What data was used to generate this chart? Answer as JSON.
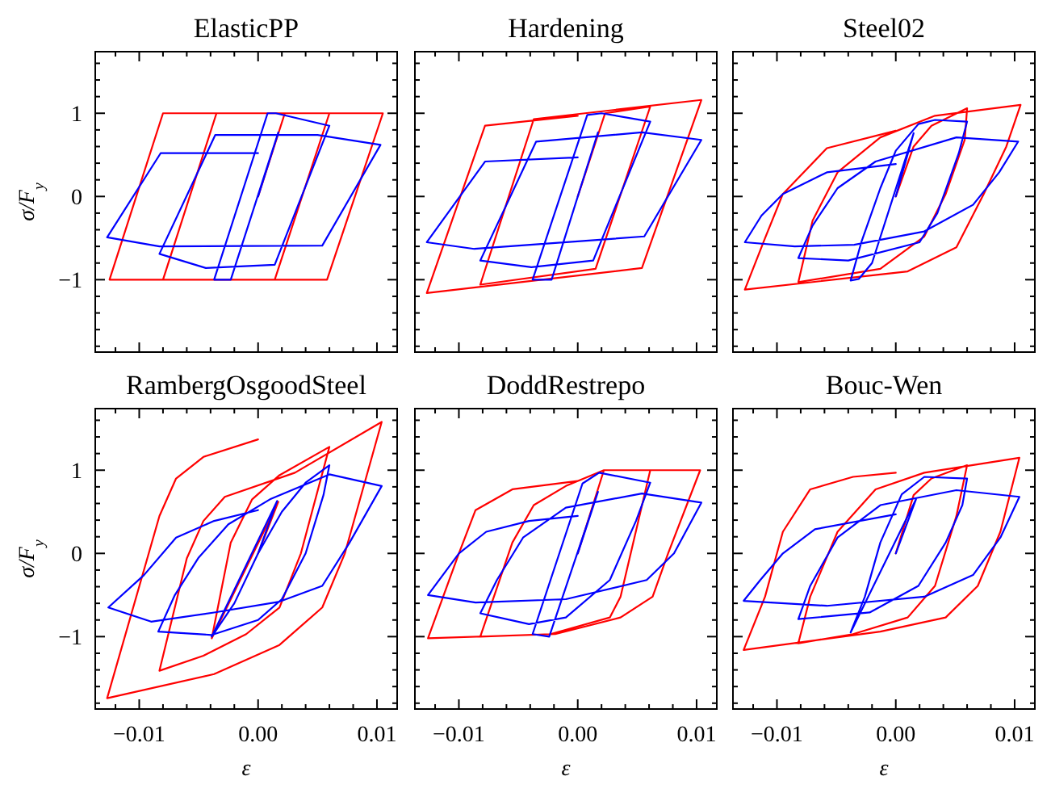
{
  "chart_data": [
    {
      "type": "line",
      "title": "ElasticPP",
      "ylabel": "σ/F$_{y}$",
      "tick_labels": "y",
      "xlim": [
        -0.0137,
        0.0117
      ],
      "ylim": [
        -1.87,
        1.74
      ],
      "xticks": [
        {
          "value": -0.012,
          "label": null
        },
        -0.01,
        {
          "value": -0.008,
          "label": null
        },
        {
          "value": -0.006,
          "label": null
        },
        {
          "value": -0.004,
          "label": null
        },
        {
          "value": -0.002,
          "label": null
        },
        0,
        {
          "value": 0.002,
          "label": null
        },
        {
          "value": 0.004,
          "label": null
        },
        {
          "value": 0.006,
          "label": null
        },
        {
          "value": 0.008,
          "label": null
        },
        0.01
      ],
      "yticks": [
        {
          "value": -1.8,
          "label": null
        },
        {
          "value": -1.6,
          "label": null
        },
        {
          "value": -1.4,
          "label": null
        },
        {
          "value": -1.2,
          "label": null
        },
        {
          "value": -1,
          "label": "−1"
        },
        {
          "value": -0.8,
          "label": null
        },
        {
          "value": -0.6,
          "label": null
        },
        {
          "value": -0.4,
          "label": null
        },
        {
          "value": -0.2,
          "label": null
        },
        {
          "value": 0,
          "label": "0"
        },
        {
          "value": 0.2,
          "label": null
        },
        {
          "value": 0.4,
          "label": null
        },
        {
          "value": 0.6,
          "label": null
        },
        {
          "value": 0.8,
          "label": null
        },
        {
          "value": 1,
          "label": "1"
        },
        {
          "value": 1.2,
          "label": null
        },
        {
          "value": 1.4,
          "label": null
        },
        {
          "value": 1.6,
          "label": null
        }
      ],
      "series": [
        {
          "color": "#ff0000",
          "x": [
            0,
            0.00225,
            0.006,
            0.0014,
            -0.008,
            -0.0035,
            0.0105,
            0.0058,
            -0.0125,
            -0.008,
            0
          ],
          "values": [
            0,
            1,
            1,
            -1,
            -1,
            1,
            1,
            -1,
            -1,
            1,
            1
          ]
        },
        {
          "color": "#0000ff",
          "x": [
            0,
            0.0017,
            -0.0023,
            -0.0037,
            0.0008,
            0.0015,
            0.006,
            0.0014,
            -0.0044,
            -0.0083,
            -0.0036,
            0.005,
            0.0103,
            0.0054,
            -0.0083,
            -0.0127,
            -0.0082,
            0
          ],
          "values": [
            0,
            0.77,
            -1,
            -1,
            1,
            1,
            0.85,
            -0.82,
            -0.86,
            -0.69,
            0.74,
            0.74,
            0.62,
            -0.59,
            -0.6,
            -0.49,
            0.52,
            0.52
          ]
        }
      ]
    },
    {
      "type": "line",
      "title": "Hardening",
      "tick_labels": false,
      "xlim": [
        -0.0137,
        0.0117
      ],
      "ylim": [
        -1.87,
        1.74
      ],
      "xticks": [
        {
          "value": -0.012,
          "label": null
        },
        -0.01,
        {
          "value": -0.008,
          "label": null
        },
        {
          "value": -0.006,
          "label": null
        },
        {
          "value": -0.004,
          "label": null
        },
        {
          "value": -0.002,
          "label": null
        },
        0,
        {
          "value": 0.002,
          "label": null
        },
        {
          "value": 0.004,
          "label": null
        },
        {
          "value": 0.006,
          "label": null
        },
        {
          "value": 0.008,
          "label": null
        },
        0.01
      ],
      "yticks": [
        {
          "value": -1.8,
          "label": null
        },
        {
          "value": -1.6,
          "label": null
        },
        {
          "value": -1.4,
          "label": null
        },
        {
          "value": -1.2,
          "label": null
        },
        -1,
        {
          "value": -0.8,
          "label": null
        },
        {
          "value": -0.6,
          "label": null
        },
        {
          "value": -0.4,
          "label": null
        },
        {
          "value": -0.2,
          "label": null
        },
        0,
        {
          "value": 0.2,
          "label": null
        },
        {
          "value": 0.4,
          "label": null
        },
        {
          "value": 0.6,
          "label": null
        },
        {
          "value": 0.8,
          "label": null
        },
        1,
        {
          "value": 1.2,
          "label": null
        },
        {
          "value": 1.4,
          "label": null
        },
        {
          "value": 1.6,
          "label": null
        }
      ],
      "series": [
        {
          "color": "#ff0000",
          "x": [
            0,
            0.0023,
            0.0061,
            0.0015,
            -0.0082,
            -0.0037,
            0.0104,
            0.0054,
            -0.0127,
            -0.0078,
            0
          ],
          "values": [
            0,
            1,
            1.08,
            -0.87,
            -1.06,
            0.93,
            1.16,
            -0.86,
            -1.16,
            0.85,
            0.97
          ]
        },
        {
          "color": "#0000ff",
          "x": [
            0,
            0.0017,
            -0.0022,
            -0.0038,
            0.0008,
            0.002,
            0.0061,
            0.0013,
            -0.0039,
            -0.0082,
            -0.0035,
            0.0054,
            0.0104,
            0.0056,
            -0.0087,
            -0.0127,
            -0.0078,
            0
          ],
          "values": [
            0,
            0.77,
            -1,
            -1,
            0.98,
            1,
            0.9,
            -0.77,
            -0.85,
            -0.77,
            0.66,
            0.77,
            0.68,
            -0.48,
            -0.63,
            -0.55,
            0.42,
            0.47
          ]
        }
      ]
    },
    {
      "type": "line",
      "title": "Steel02",
      "tick_labels": false,
      "xlim": [
        -0.0137,
        0.0117
      ],
      "ylim": [
        -1.87,
        1.74
      ],
      "xticks": [
        {
          "value": -0.012,
          "label": null
        },
        -0.01,
        {
          "value": -0.008,
          "label": null
        },
        {
          "value": -0.006,
          "label": null
        },
        {
          "value": -0.004,
          "label": null
        },
        {
          "value": -0.002,
          "label": null
        },
        0,
        {
          "value": 0.002,
          "label": null
        },
        {
          "value": 0.004,
          "label": null
        },
        {
          "value": 0.006,
          "label": null
        },
        {
          "value": 0.008,
          "label": null
        },
        0.01
      ],
      "yticks": [
        {
          "value": -1.8,
          "label": null
        },
        {
          "value": -1.6,
          "label": null
        },
        {
          "value": -1.4,
          "label": null
        },
        {
          "value": -1.2,
          "label": null
        },
        -1,
        {
          "value": -0.8,
          "label": null
        },
        {
          "value": -0.6,
          "label": null
        },
        {
          "value": -0.4,
          "label": null
        },
        {
          "value": -0.2,
          "label": null
        },
        0,
        {
          "value": 0.2,
          "label": null
        },
        {
          "value": 0.4,
          "label": null
        },
        {
          "value": 0.6,
          "label": null
        },
        {
          "value": 0.8,
          "label": null
        },
        1,
        {
          "value": 1.2,
          "label": null
        },
        {
          "value": 1.4,
          "label": null
        },
        {
          "value": 1.6,
          "label": null
        }
      ],
      "series": [
        {
          "color": "#ff0000",
          "x": [
            0,
            0.0015,
            0.003,
            0.006,
            0.0058,
            0.0042,
            0.0024,
            -0.0013,
            -0.0082,
            -0.007,
            -0.0049,
            -0.0013,
            0.0033,
            0.0105,
            0.0093,
            0.0074,
            0.0051,
            0.001,
            -0.0127,
            -0.011,
            -0.0095,
            -0.0058,
            0
          ],
          "values": [
            0,
            0.6,
            0.85,
            1.06,
            0.68,
            0.03,
            -0.48,
            -0.87,
            -1.03,
            -0.29,
            0.29,
            0.71,
            0.97,
            1.1,
            0.6,
            0.03,
            -0.61,
            -0.9,
            -1.12,
            -0.5,
            0.03,
            0.58,
            0.79
          ]
        },
        {
          "color": "#0000ff",
          "x": [
            0,
            0.0015,
            -0.002,
            -0.0031,
            -0.0038,
            -0.0029,
            -0.0013,
            0,
            0.0019,
            0.0033,
            0.006,
            0.0053,
            0.0035,
            0.002,
            -0.004,
            -0.0082,
            -0.007,
            -0.0049,
            -0.0017,
            0.0051,
            0.0103,
            0.0087,
            0.0065,
            0.0024,
            -0.0035,
            -0.0085,
            -0.0127,
            -0.0113,
            -0.0095,
            -0.0058,
            0
          ],
          "values": [
            0,
            0.76,
            -0.8,
            -0.99,
            -1.01,
            -0.55,
            0.1,
            0.55,
            0.87,
            0.92,
            0.9,
            0.52,
            -0.2,
            -0.55,
            -0.77,
            -0.74,
            -0.35,
            0.1,
            0.42,
            0.71,
            0.66,
            0.29,
            -0.1,
            -0.42,
            -0.58,
            -0.6,
            -0.55,
            -0.23,
            0.03,
            0.29,
            0.39
          ]
        }
      ]
    },
    {
      "type": "line",
      "title": "RambergOsgoodSteel",
      "xlabel": "ε",
      "ylabel": "σ/F$_{y}$",
      "xlim": [
        -0.0137,
        0.0117
      ],
      "ylim": [
        -1.87,
        1.74
      ],
      "xticks": [
        {
          "value": -0.012,
          "label": null
        },
        {
          "value": -0.01,
          "label": "−0.01"
        },
        {
          "value": -0.008,
          "label": null
        },
        {
          "value": -0.006,
          "label": null
        },
        {
          "value": -0.004,
          "label": null
        },
        {
          "value": -0.002,
          "label": null
        },
        {
          "value": 0,
          "label": "0.00"
        },
        {
          "value": 0.002,
          "label": null
        },
        {
          "value": 0.004,
          "label": null
        },
        {
          "value": 0.006,
          "label": null
        },
        {
          "value": 0.008,
          "label": null
        },
        {
          "value": 0.01,
          "label": "0.01"
        }
      ],
      "yticks": [
        {
          "value": -1.8,
          "label": null
        },
        {
          "value": -1.6,
          "label": null
        },
        {
          "value": -1.4,
          "label": null
        },
        {
          "value": -1.2,
          "label": null
        },
        {
          "value": -1,
          "label": "−1"
        },
        {
          "value": -0.8,
          "label": null
        },
        {
          "value": -0.6,
          "label": null
        },
        {
          "value": -0.4,
          "label": null
        },
        {
          "value": -0.2,
          "label": null
        },
        {
          "value": 0,
          "label": "0"
        },
        {
          "value": 0.2,
          "label": null
        },
        {
          "value": 0.4,
          "label": null
        },
        {
          "value": 0.6,
          "label": null
        },
        {
          "value": 0.8,
          "label": null
        },
        {
          "value": 1,
          "label": "1"
        },
        {
          "value": 1.2,
          "label": null
        },
        {
          "value": 1.4,
          "label": null
        },
        {
          "value": 1.6,
          "label": null
        }
      ],
      "series": [
        {
          "color": "#ff0000",
          "x": [
            0,
            0.0017,
            -0.0039,
            -0.0023,
            -0.0005,
            0.0018,
            0.006,
            0.0036,
            0.0018,
            -0.001,
            -0.0046,
            -0.0083,
            -0.006,
            -0.0046,
            -0.0028,
            0.0031,
            0.0104,
            0.0073,
            0.0054,
            0.0018,
            -0.0037,
            -0.0127,
            -0.0092,
            -0.0083,
            -0.0069,
            -0.0046,
            0
          ],
          "values": [
            0,
            0.62,
            -1.02,
            0.13,
            0.65,
            0.94,
            1.28,
            0,
            -0.65,
            -0.97,
            -1.23,
            -1.41,
            -0.06,
            0.39,
            0.68,
            0.97,
            1.58,
            0,
            -0.65,
            -1.1,
            -1.45,
            -1.74,
            0,
            0.45,
            0.9,
            1.16,
            1.37
          ]
        },
        {
          "color": "#0000ff",
          "x": [
            0,
            0.0016,
            -0.0039,
            -0.002,
            0,
            0.002,
            0.004,
            0.006,
            0.0055,
            0.004,
            0.002,
            0,
            -0.0039,
            -0.0084,
            -0.007,
            -0.005,
            -0.0025,
            0.001,
            0.006,
            0.0104,
            0.0077,
            0.0054,
            0.0018,
            -0.0037,
            -0.009,
            -0.0126,
            -0.0096,
            -0.0069,
            -0.0037,
            0
          ],
          "values": [
            0,
            0.63,
            -1,
            -0.6,
            0,
            0.5,
            0.85,
            1.06,
            0.7,
            0,
            -0.55,
            -0.8,
            -0.98,
            -0.94,
            -0.5,
            -0.05,
            0.35,
            0.65,
            0.95,
            0.81,
            0.13,
            -0.39,
            -0.58,
            -0.71,
            -0.82,
            -0.65,
            -0.26,
            0.19,
            0.39,
            0.52
          ]
        }
      ]
    },
    {
      "type": "line",
      "title": "DoddRestrepo",
      "xlabel": "ε",
      "tick_labels": "x",
      "xlim": [
        -0.0137,
        0.0117
      ],
      "ylim": [
        -1.87,
        1.74
      ],
      "xticks": [
        {
          "value": -0.012,
          "label": null
        },
        {
          "value": -0.01,
          "label": "−0.01"
        },
        {
          "value": -0.008,
          "label": null
        },
        {
          "value": -0.006,
          "label": null
        },
        {
          "value": -0.004,
          "label": null
        },
        {
          "value": -0.002,
          "label": null
        },
        {
          "value": 0,
          "label": "0.00"
        },
        {
          "value": 0.002,
          "label": null
        },
        {
          "value": 0.004,
          "label": null
        },
        {
          "value": 0.006,
          "label": null
        },
        {
          "value": 0.008,
          "label": null
        },
        {
          "value": 0.01,
          "label": "0.01"
        }
      ],
      "yticks": [
        {
          "value": -1.8,
          "label": null
        },
        {
          "value": -1.6,
          "label": null
        },
        {
          "value": -1.4,
          "label": null
        },
        {
          "value": -1.2,
          "label": null
        },
        -1,
        {
          "value": -0.8,
          "label": null
        },
        {
          "value": -0.6,
          "label": null
        },
        {
          "value": -0.4,
          "label": null
        },
        {
          "value": -0.2,
          "label": null
        },
        0,
        {
          "value": 0.2,
          "label": null
        },
        {
          "value": 0.4,
          "label": null
        },
        {
          "value": 0.6,
          "label": null
        },
        {
          "value": 0.8,
          "label": null
        },
        1,
        {
          "value": 1.2,
          "label": null
        },
        {
          "value": 1.4,
          "label": null
        },
        {
          "value": 1.6,
          "label": null
        }
      ],
      "series": [
        {
          "color": "#ff0000",
          "x": [
            0,
            0.0022,
            0.0061,
            0.0036,
            0.0027,
            -0.0023,
            -0.0082,
            -0.0055,
            -0.0037,
            -0.001,
            0.0022,
            0.0103,
            0.0076,
            0.0063,
            0.0036,
            -0.0019,
            -0.0126,
            -0.01,
            -0.0086,
            -0.0055,
            0
          ],
          "values": [
            0,
            1,
            1,
            -0.52,
            -0.77,
            -0.97,
            -1,
            0.13,
            0.58,
            0.81,
            1,
            1,
            0,
            -0.52,
            -0.77,
            -0.97,
            -1.02,
            0,
            0.52,
            0.77,
            0.87
          ]
        },
        {
          "color": "#0000ff",
          "x": [
            0,
            0.0017,
            -0.0024,
            -0.0038,
            0.0004,
            0.0018,
            0.0061,
            0.0049,
            0.0027,
            -0.001,
            -0.0041,
            -0.0082,
            -0.0068,
            -0.0046,
            -0.001,
            0.0054,
            0.0104,
            0.0081,
            0.0058,
            -0.001,
            -0.0086,
            -0.0126,
            -0.01,
            -0.0077,
            -0.0041,
            0
          ],
          "values": [
            0,
            0.74,
            -1,
            -0.97,
            0.84,
            0.97,
            0.85,
            0.39,
            -0.32,
            -0.77,
            -0.85,
            -0.72,
            -0.32,
            0.19,
            0.55,
            0.72,
            0.61,
            0,
            -0.32,
            -0.55,
            -0.59,
            -0.5,
            0,
            0.26,
            0.39,
            0.45
          ]
        }
      ]
    },
    {
      "type": "line",
      "title": "Bouc-Wen",
      "xlabel": "ε",
      "tick_labels": "x",
      "xlim": [
        -0.0137,
        0.0117
      ],
      "ylim": [
        -1.87,
        1.74
      ],
      "xticks": [
        {
          "value": -0.012,
          "label": null
        },
        {
          "value": -0.01,
          "label": "−0.01"
        },
        {
          "value": -0.008,
          "label": null
        },
        {
          "value": -0.006,
          "label": null
        },
        {
          "value": -0.004,
          "label": null
        },
        {
          "value": -0.002,
          "label": null
        },
        {
          "value": 0,
          "label": "0.00"
        },
        {
          "value": 0.002,
          "label": null
        },
        {
          "value": 0.004,
          "label": null
        },
        {
          "value": 0.006,
          "label": null
        },
        {
          "value": 0.008,
          "label": null
        },
        {
          "value": 0.01,
          "label": "0.01"
        }
      ],
      "yticks": [
        {
          "value": -1.8,
          "label": null
        },
        {
          "value": -1.6,
          "label": null
        },
        {
          "value": -1.4,
          "label": null
        },
        {
          "value": -1.2,
          "label": null
        },
        -1,
        {
          "value": -0.8,
          "label": null
        },
        {
          "value": -0.6,
          "label": null
        },
        {
          "value": -0.4,
          "label": null
        },
        {
          "value": -0.2,
          "label": null
        },
        0,
        {
          "value": 0.2,
          "label": null
        },
        {
          "value": 0.4,
          "label": null
        },
        {
          "value": 0.6,
          "label": null
        },
        {
          "value": 0.8,
          "label": null
        },
        1,
        {
          "value": 1.2,
          "label": null
        },
        {
          "value": 1.4,
          "label": null
        },
        {
          "value": 1.6,
          "label": null
        }
      ],
      "series": [
        {
          "color": "#ff0000",
          "x": [
            0,
            0.0015,
            0.003,
            0.006,
            0.0051,
            0.0033,
            0.001,
            -0.0036,
            -0.0082,
            -0.0072,
            -0.0049,
            -0.0017,
            0.0024,
            0.0104,
            0.0088,
            0.0069,
            0.0042,
            -0.0013,
            -0.0128,
            -0.011,
            -0.0095,
            -0.0072,
            -0.0036,
            0
          ],
          "values": [
            0,
            0.7,
            0.9,
            1.06,
            0.45,
            -0.39,
            -0.77,
            -0.97,
            -1.08,
            -0.52,
            0.26,
            0.77,
            0.97,
            1.15,
            0.26,
            -0.39,
            -0.77,
            -0.94,
            -1.16,
            -0.52,
            0.26,
            0.77,
            0.92,
            0.97
          ]
        },
        {
          "color": "#0000ff",
          "x": [
            0,
            0.0017,
            -0.0038,
            -0.0026,
            -0.0013,
            0.0005,
            0.0024,
            0.006,
            0.0056,
            0.0042,
            0.0019,
            -0.0022,
            -0.0082,
            -0.0072,
            -0.0049,
            -0.0013,
            0.0051,
            0.0104,
            0.0088,
            0.0065,
            0.0024,
            -0.0058,
            -0.0128,
            -0.0114,
            -0.0095,
            -0.0068,
            0
          ],
          "values": [
            0,
            0.65,
            -0.95,
            -0.52,
            0.13,
            0.71,
            0.92,
            0.9,
            0.58,
            0.13,
            -0.39,
            -0.71,
            -0.79,
            -0.39,
            0.19,
            0.58,
            0.76,
            0.68,
            0.19,
            -0.26,
            -0.52,
            -0.63,
            -0.57,
            -0.32,
            0,
            0.29,
            0.47
          ]
        }
      ]
    }
  ]
}
